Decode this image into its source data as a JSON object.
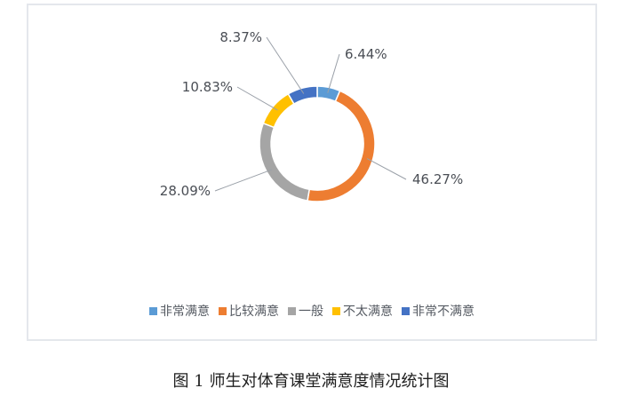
{
  "figure": {
    "caption": "图 1 师生对体育课堂满意度情况统计图"
  },
  "chart_data": {
    "type": "pie",
    "variant": "donut",
    "title": "",
    "categories": [
      "非常满意",
      "比较满意",
      "一般",
      "不太满意",
      "非常不满意"
    ],
    "values": [
      6.44,
      46.27,
      28.09,
      10.83,
      8.37
    ],
    "value_labels": [
      "6.44%",
      "46.27%",
      "28.09%",
      "10.83%",
      "8.37%"
    ],
    "colors": [
      "#5b9bd5",
      "#ed7d31",
      "#a5a5a5",
      "#ffc000",
      "#4472c4"
    ],
    "legend": "bottom",
    "start_angle": "top, clockwise"
  }
}
